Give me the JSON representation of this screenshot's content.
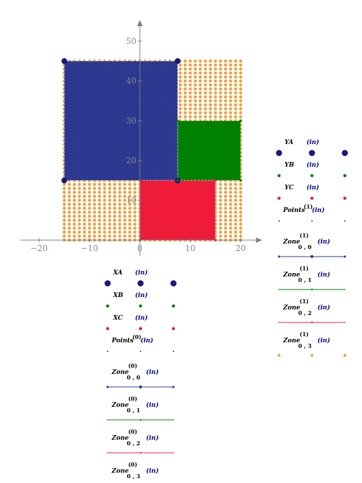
{
  "chart_data": {
    "type": "scatter",
    "xlim": [
      -24,
      24
    ],
    "ylim": [
      -4,
      55
    ],
    "x_ticks": [
      -20,
      -10,
      0,
      10,
      20
    ],
    "y_ticks": [
      10,
      20,
      30,
      40,
      50
    ],
    "x_tick_labels": [
      "−20",
      "−10",
      "0",
      "10",
      "20"
    ],
    "y_tick_labels": [
      "10",
      "20",
      "30",
      "40",
      "50"
    ],
    "grid": false,
    "points_grid": {
      "x_range": [
        -15,
        20
      ],
      "y_range": [
        0,
        45
      ],
      "spacing": 1,
      "color": "#f0a040"
    },
    "series": [
      {
        "key": "A",
        "color": "#2b3990",
        "points": {
          "x": [
            -15,
            7.5,
            7.5,
            -15
          ],
          "y": [
            45,
            45,
            15,
            15
          ]
        },
        "zone": {
          "x": [
            -15,
            7.5
          ],
          "y": [
            15,
            45
          ]
        }
      },
      {
        "key": "B",
        "color": "#008000",
        "points": {
          "x": [
            7.5,
            20,
            20,
            7.5
          ],
          "y": [
            30,
            30,
            15,
            15
          ]
        },
        "zone": {
          "x": [
            7.5,
            20
          ],
          "y": [
            15,
            30
          ]
        }
      },
      {
        "key": "C",
        "color": "#ee1c3a",
        "points": {
          "x": [
            0,
            15,
            15,
            0
          ],
          "y": [
            15,
            15,
            0,
            0
          ]
        },
        "zone": {
          "x": [
            0,
            15
          ],
          "y": [
            0,
            15
          ]
        }
      }
    ]
  },
  "legend_left": {
    "xa": "XA",
    "xb": "XB",
    "xc": "XC",
    "points": "Points",
    "points_sup": "(0)",
    "zone": "Zone",
    "zone_sup": "(0)",
    "zone_subs": [
      "0 , 0",
      "0 , 1",
      "0 , 2",
      "0 , 3"
    ],
    "unit": "(in)"
  },
  "legend_right": {
    "ya": "YA",
    "yb": "YB",
    "yc": "YC",
    "points": "Points",
    "points_sup": "(1)",
    "zone": "Zone",
    "zone_sup": "(1)",
    "zone_subs": [
      "0 , 0",
      "0 , 1",
      "0 , 2",
      "0 , 3"
    ],
    "unit": "(in)"
  },
  "colors": {
    "blue": "#2b3990",
    "dark_blue": "#1a1a7a",
    "green": "#008000",
    "red": "#ee1c3a",
    "orange": "#f0a040",
    "axis": "#808080"
  }
}
